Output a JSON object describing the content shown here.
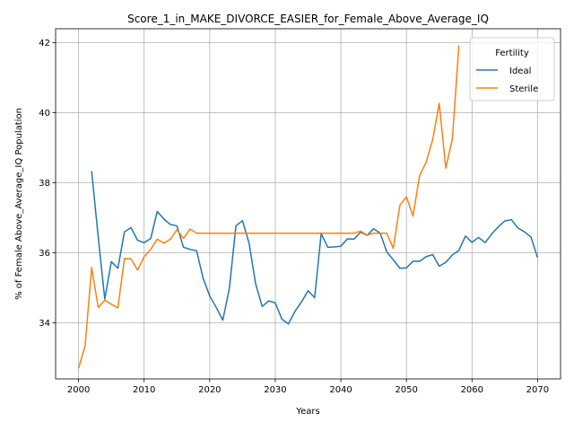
{
  "chart_data": {
    "type": "line",
    "title": "Score_1_in_MAKE_DIVORCE_EASIER_for_Female_Above_Average_IQ",
    "xlabel": "Years",
    "ylabel": "% of Female Above_Average_IQ Population",
    "xlim": [
      1996.5,
      2073.5
    ],
    "ylim": [
      32.4,
      42.4
    ],
    "xticks": [
      2000,
      2010,
      2020,
      2030,
      2040,
      2050,
      2060,
      2070
    ],
    "yticks": [
      34,
      36,
      38,
      40,
      42
    ],
    "grid": true,
    "legend": {
      "title": "Fertility",
      "placement": "top-right"
    },
    "series": [
      {
        "name": "Ideal",
        "color": "#1f77b4",
        "x": [
          2002,
          2003,
          2004,
          2005,
          2006,
          2007,
          2008,
          2009,
          2010,
          2011,
          2012,
          2013,
          2014,
          2015,
          2016,
          2017,
          2018,
          2019,
          2020,
          2021,
          2022,
          2023,
          2024,
          2025,
          2026,
          2027,
          2028,
          2029,
          2030,
          2031,
          2032,
          2033,
          2034,
          2035,
          2036,
          2037,
          2038,
          2039,
          2040,
          2041,
          2042,
          2043,
          2044,
          2045,
          2046,
          2047,
          2048,
          2049,
          2050,
          2051,
          2052,
          2053,
          2054,
          2055,
          2056,
          2057,
          2058,
          2059,
          2060,
          2061,
          2062,
          2063,
          2064,
          2065,
          2066,
          2067,
          2068,
          2069,
          2070
        ],
        "y": [
          38.33,
          36.45,
          34.68,
          35.75,
          35.56,
          36.6,
          36.72,
          36.36,
          36.29,
          36.41,
          37.18,
          36.97,
          36.81,
          36.77,
          36.16,
          36.1,
          36.06,
          35.27,
          34.77,
          34.44,
          34.08,
          34.99,
          36.77,
          36.92,
          36.28,
          35.12,
          34.47,
          34.63,
          34.57,
          34.11,
          33.97,
          34.33,
          34.6,
          34.92,
          34.72,
          36.55,
          36.16,
          36.17,
          36.19,
          36.4,
          36.39,
          36.59,
          36.5,
          36.69,
          36.56,
          36.03,
          35.8,
          35.56,
          35.57,
          35.76,
          35.76,
          35.89,
          35.95,
          35.62,
          35.73,
          35.94,
          36.07,
          36.48,
          36.3,
          36.44,
          36.29,
          36.54,
          36.74,
          36.91,
          36.95,
          36.71,
          36.6,
          36.45,
          35.86
        ]
      },
      {
        "name": "Sterile",
        "color": "#ff7f0e",
        "x": [
          2000,
          2001,
          2002,
          2003,
          2004,
          2005,
          2006,
          2007,
          2008,
          2009,
          2010,
          2011,
          2012,
          2013,
          2014,
          2015,
          2016,
          2017,
          2018,
          2019,
          2020,
          2021,
          2022,
          2023,
          2024,
          2025,
          2026,
          2027,
          2028,
          2029,
          2030,
          2031,
          2032,
          2033,
          2034,
          2035,
          2036,
          2037,
          2038,
          2039,
          2040,
          2041,
          2042,
          2043,
          2044,
          2045,
          2046,
          2047,
          2048,
          2049,
          2050,
          2051,
          2052,
          2053,
          2054,
          2055,
          2056,
          2057,
          2058
        ],
        "y": [
          32.7,
          33.35,
          35.58,
          34.44,
          34.65,
          34.53,
          34.43,
          35.84,
          35.83,
          35.51,
          35.89,
          36.1,
          36.39,
          36.28,
          36.39,
          36.66,
          36.41,
          36.68,
          36.56,
          36.56,
          36.56,
          36.56,
          36.56,
          36.56,
          36.56,
          36.56,
          36.56,
          36.56,
          36.56,
          36.56,
          36.56,
          36.56,
          36.56,
          36.56,
          36.56,
          36.56,
          36.56,
          36.56,
          36.56,
          36.56,
          36.56,
          36.56,
          36.56,
          36.62,
          36.51,
          36.56,
          36.56,
          36.56,
          36.13,
          37.36,
          37.6,
          37.05,
          38.2,
          38.59,
          39.23,
          40.27,
          38.42,
          39.25,
          41.92
        ]
      }
    ]
  }
}
